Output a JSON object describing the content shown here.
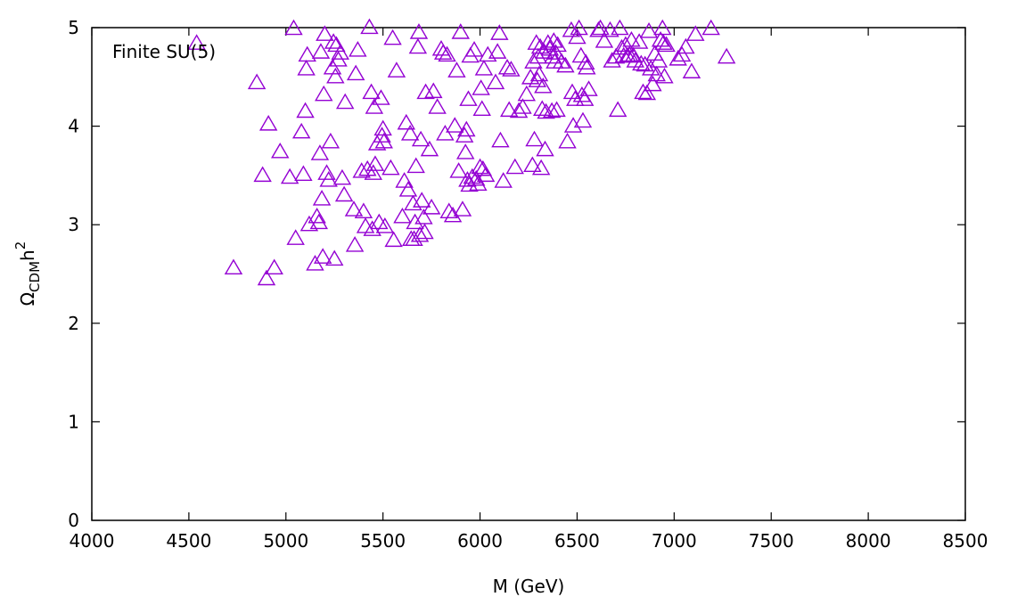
{
  "chart_data": {
    "type": "scatter",
    "annotation": "Finite SU(5)",
    "xlabel": "M (GeV)",
    "ylabel": {
      "main": "Ω",
      "sub": "CDM",
      "rest": "h",
      "sup": "2"
    },
    "xlim": [
      4000,
      8500
    ],
    "ylim": [
      0,
      5
    ],
    "xticks": [
      4000,
      4500,
      5000,
      5500,
      6000,
      6500,
      7000,
      7500,
      8000,
      8500
    ],
    "yticks": [
      0,
      1,
      2,
      3,
      4,
      5
    ],
    "grid": false,
    "marker": "open-triangle",
    "color": "#9400d3",
    "series": [
      {
        "points": [
          [
            4540,
            4.84
          ],
          [
            4730,
            2.56
          ],
          [
            4850,
            4.44
          ],
          [
            4880,
            3.5
          ],
          [
            4900,
            2.45
          ],
          [
            4910,
            4.02
          ],
          [
            4940,
            2.56
          ],
          [
            4970,
            3.74
          ],
          [
            5020,
            3.48
          ],
          [
            5040,
            4.99
          ],
          [
            5050,
            2.86
          ],
          [
            5080,
            3.94
          ],
          [
            5090,
            3.51
          ],
          [
            5100,
            4.15
          ],
          [
            5105,
            4.58
          ],
          [
            5110,
            4.72
          ],
          [
            5120,
            3.0
          ],
          [
            5150,
            2.6
          ],
          [
            5160,
            3.08
          ],
          [
            5170,
            3.02
          ],
          [
            5175,
            3.72
          ],
          [
            5180,
            4.75
          ],
          [
            5185,
            3.26
          ],
          [
            5190,
            2.67
          ],
          [
            5195,
            4.32
          ],
          [
            5200,
            4.93
          ],
          [
            5210,
            3.52
          ],
          [
            5220,
            3.45
          ],
          [
            5230,
            3.84
          ],
          [
            5240,
            4.59
          ],
          [
            5245,
            4.85
          ],
          [
            5250,
            2.65
          ],
          [
            5255,
            4.5
          ],
          [
            5260,
            4.82
          ],
          [
            5270,
            4.67
          ],
          [
            5280,
            4.74
          ],
          [
            5290,
            3.47
          ],
          [
            5300,
            3.3
          ],
          [
            5305,
            4.24
          ],
          [
            5350,
            3.15
          ],
          [
            5355,
            2.79
          ],
          [
            5360,
            4.53
          ],
          [
            5370,
            4.77
          ],
          [
            5390,
            3.54
          ],
          [
            5400,
            3.13
          ],
          [
            5410,
            2.98
          ],
          [
            5420,
            3.56
          ],
          [
            5430,
            5.0
          ],
          [
            5440,
            4.34
          ],
          [
            5445,
            2.95
          ],
          [
            5450,
            3.52
          ],
          [
            5455,
            4.19
          ],
          [
            5460,
            3.61
          ],
          [
            5470,
            3.82
          ],
          [
            5480,
            3.02
          ],
          [
            5490,
            4.28
          ],
          [
            5495,
            3.9
          ],
          [
            5500,
            3.97
          ],
          [
            5505,
            3.84
          ],
          [
            5510,
            2.98
          ],
          [
            5540,
            3.57
          ],
          [
            5550,
            4.89
          ],
          [
            5555,
            2.84
          ],
          [
            5570,
            4.56
          ],
          [
            5600,
            3.08
          ],
          [
            5610,
            3.44
          ],
          [
            5620,
            4.03
          ],
          [
            5630,
            3.35
          ],
          [
            5640,
            3.92
          ],
          [
            5645,
            2.85
          ],
          [
            5655,
            3.21
          ],
          [
            5660,
            2.85
          ],
          [
            5665,
            3.02
          ],
          [
            5670,
            3.59
          ],
          [
            5680,
            4.8
          ],
          [
            5685,
            4.95
          ],
          [
            5690,
            2.89
          ],
          [
            5695,
            3.86
          ],
          [
            5700,
            3.24
          ],
          [
            5710,
            3.07
          ],
          [
            5715,
            2.92
          ],
          [
            5720,
            4.34
          ],
          [
            5740,
            3.76
          ],
          [
            5750,
            3.17
          ],
          [
            5760,
            4.35
          ],
          [
            5780,
            4.19
          ],
          [
            5800,
            4.78
          ],
          [
            5810,
            4.74
          ],
          [
            5820,
            3.92
          ],
          [
            5830,
            4.72
          ],
          [
            5840,
            3.13
          ],
          [
            5860,
            3.09
          ],
          [
            5870,
            4.0
          ],
          [
            5880,
            4.56
          ],
          [
            5890,
            3.54
          ],
          [
            5900,
            4.95
          ],
          [
            5910,
            3.15
          ],
          [
            5920,
            3.9
          ],
          [
            5925,
            3.73
          ],
          [
            5930,
            3.96
          ],
          [
            5935,
            3.45
          ],
          [
            5940,
            4.27
          ],
          [
            5945,
            3.4
          ],
          [
            5950,
            4.71
          ],
          [
            5960,
            3.48
          ],
          [
            5970,
            4.77
          ],
          [
            5980,
            3.46
          ],
          [
            5990,
            3.41
          ],
          [
            6000,
            3.58
          ],
          [
            6005,
            4.38
          ],
          [
            6010,
            4.17
          ],
          [
            6015,
            3.56
          ],
          [
            6020,
            4.58
          ],
          [
            6030,
            3.5
          ],
          [
            6040,
            4.72
          ],
          [
            6080,
            4.44
          ],
          [
            6090,
            4.75
          ],
          [
            6100,
            4.94
          ],
          [
            6105,
            3.85
          ],
          [
            6120,
            3.44
          ],
          [
            6140,
            4.59
          ],
          [
            6150,
            4.16
          ],
          [
            6160,
            4.57
          ],
          [
            6180,
            3.58
          ],
          [
            6200,
            4.15
          ],
          [
            6220,
            4.19
          ],
          [
            6240,
            4.32
          ],
          [
            6260,
            4.49
          ],
          [
            6270,
            3.6
          ],
          [
            6275,
            4.65
          ],
          [
            6280,
            3.86
          ],
          [
            6290,
            4.84
          ],
          [
            6295,
            4.46
          ],
          [
            6300,
            4.7
          ],
          [
            6305,
            4.52
          ],
          [
            6310,
            4.8
          ],
          [
            6315,
            3.57
          ],
          [
            6320,
            4.17
          ],
          [
            6325,
            4.4
          ],
          [
            6330,
            4.75
          ],
          [
            6335,
            3.76
          ],
          [
            6340,
            4.14
          ],
          [
            6350,
            4.84
          ],
          [
            6360,
            4.78
          ],
          [
            6370,
            4.15
          ],
          [
            6375,
            4.7
          ],
          [
            6380,
            4.86
          ],
          [
            6385,
            4.65
          ],
          [
            6390,
            4.74
          ],
          [
            6395,
            4.16
          ],
          [
            6400,
            4.82
          ],
          [
            6420,
            4.65
          ],
          [
            6440,
            4.61
          ],
          [
            6450,
            3.84
          ],
          [
            6470,
            4.97
          ],
          [
            6475,
            4.34
          ],
          [
            6480,
            4.0
          ],
          [
            6490,
            4.27
          ],
          [
            6500,
            4.9
          ],
          [
            6510,
            4.99
          ],
          [
            6520,
            4.71
          ],
          [
            6525,
            4.31
          ],
          [
            6530,
            4.05
          ],
          [
            6540,
            4.27
          ],
          [
            6545,
            4.64
          ],
          [
            6550,
            4.59
          ],
          [
            6560,
            4.37
          ],
          [
            6610,
            4.97
          ],
          [
            6620,
            4.99
          ],
          [
            6640,
            4.86
          ],
          [
            6670,
            4.97
          ],
          [
            6680,
            4.66
          ],
          [
            6700,
            4.7
          ],
          [
            6710,
            4.16
          ],
          [
            6720,
            4.99
          ],
          [
            6730,
            4.79
          ],
          [
            6740,
            4.71
          ],
          [
            6750,
            4.82
          ],
          [
            6760,
            4.71
          ],
          [
            6770,
            4.72
          ],
          [
            6780,
            4.87
          ],
          [
            6790,
            4.71
          ],
          [
            6800,
            4.66
          ],
          [
            6820,
            4.85
          ],
          [
            6830,
            4.63
          ],
          [
            6840,
            4.34
          ],
          [
            6850,
            4.62
          ],
          [
            6860,
            4.33
          ],
          [
            6870,
            4.96
          ],
          [
            6880,
            4.58
          ],
          [
            6890,
            4.42
          ],
          [
            6900,
            4.73
          ],
          [
            6910,
            4.52
          ],
          [
            6920,
            4.66
          ],
          [
            6930,
            4.87
          ],
          [
            6940,
            4.99
          ],
          [
            6945,
            4.84
          ],
          [
            6950,
            4.5
          ],
          [
            6960,
            4.82
          ],
          [
            7020,
            4.68
          ],
          [
            7040,
            4.72
          ],
          [
            7060,
            4.8
          ],
          [
            7090,
            4.55
          ],
          [
            7110,
            4.93
          ],
          [
            7190,
            4.99
          ],
          [
            7270,
            4.7
          ]
        ]
      }
    ]
  }
}
